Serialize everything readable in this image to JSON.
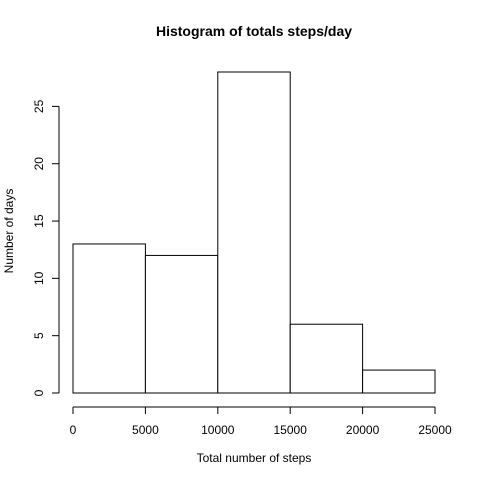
{
  "chart_data": {
    "type": "bar",
    "title": "Histogram of totals steps/day",
    "xlabel": "Total number of steps",
    "ylabel": "Number of days",
    "bins": [
      {
        "from": 0,
        "to": 5000,
        "count": 13
      },
      {
        "from": 5000,
        "to": 10000,
        "count": 12
      },
      {
        "from": 10000,
        "to": 15000,
        "count": 28
      },
      {
        "from": 15000,
        "to": 20000,
        "count": 6
      },
      {
        "from": 20000,
        "to": 25000,
        "count": 2
      }
    ],
    "xlim": [
      0,
      25000
    ],
    "ylim": [
      0,
      28
    ],
    "x_ticks": [
      "0",
      "5000",
      "10000",
      "15000",
      "20000",
      "25000"
    ],
    "y_ticks": [
      "0",
      "5",
      "10",
      "15",
      "20",
      "25"
    ],
    "grid": false,
    "colors": {
      "bar_fill": "#ffffff",
      "bar_stroke": "#000000"
    }
  }
}
